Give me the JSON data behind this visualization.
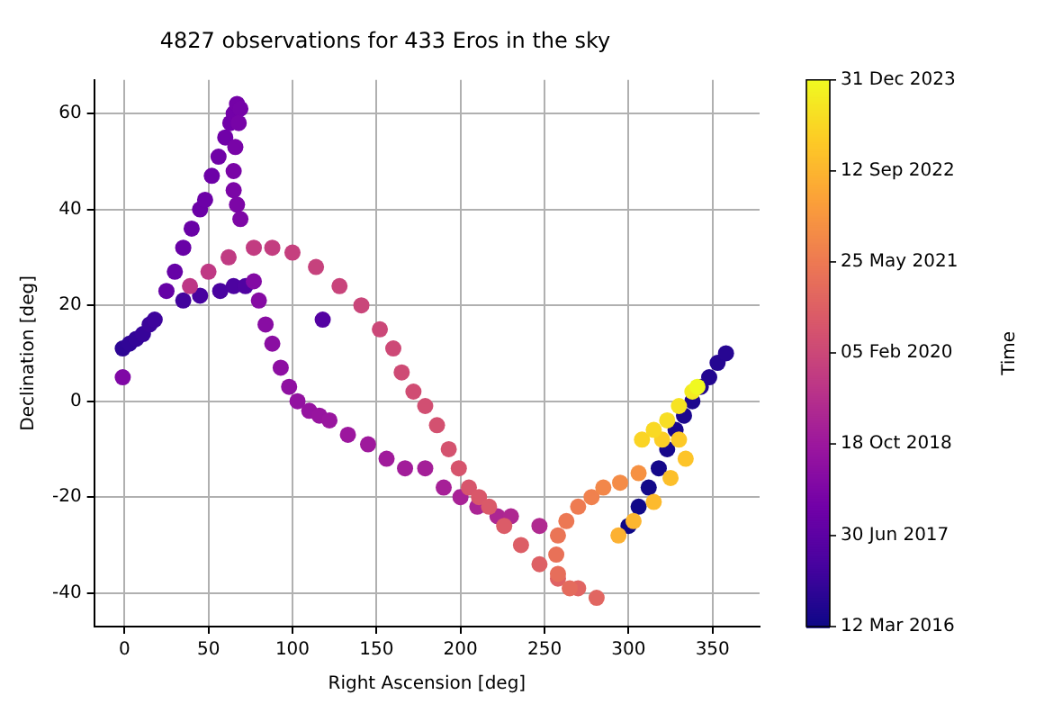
{
  "chart_data": {
    "type": "scatter",
    "title": "4827 observations for 433 Eros in the sky",
    "xlabel": "Right Ascension [deg]",
    "ylabel": "Declination [deg]",
    "clabel": "Time",
    "grid": true,
    "marker": "circle",
    "xlim": [
      -18,
      378
    ],
    "xticks": [
      0,
      50,
      100,
      150,
      200,
      250,
      300,
      350
    ],
    "ylim": [
      -47,
      67
    ],
    "yticks": [
      -40,
      -20,
      0,
      20,
      40,
      60
    ],
    "clim": [
      2016.19,
      2024.0
    ],
    "cticks": [
      {
        "value": 2016.19,
        "label": "12 Mar 2016"
      },
      {
        "value": 2017.49,
        "label": "30 Jun 2017"
      },
      {
        "value": 2018.8,
        "label": "18 Oct 2018"
      },
      {
        "value": 2020.1,
        "label": "05 Feb 2020"
      },
      {
        "value": 2021.4,
        "label": "25 May 2021"
      },
      {
        "value": 2022.7,
        "label": "12 Sep 2022"
      },
      {
        "value": 2024.0,
        "label": "31 Dec 2023"
      }
    ],
    "x": [
      300,
      306,
      312,
      318,
      323,
      328,
      333,
      338,
      343,
      348,
      353,
      358,
      -1,
      3,
      7,
      11,
      15,
      18,
      35,
      45,
      57,
      65,
      72,
      118,
      25,
      30,
      35,
      40,
      45,
      48,
      52,
      56,
      60,
      63,
      65,
      67,
      69,
      68,
      66,
      65,
      65,
      67,
      69,
      -1,
      77,
      80,
      84,
      88,
      93,
      98,
      103,
      110,
      116,
      122,
      133,
      145,
      156,
      167,
      179,
      190,
      200,
      210,
      222,
      230,
      247,
      39,
      50,
      62,
      77,
      88,
      100,
      114,
      128,
      141,
      152,
      160,
      165,
      172,
      179,
      186,
      193,
      199,
      205,
      211,
      217,
      226,
      236,
      247,
      258,
      270,
      281,
      265,
      258,
      257,
      258,
      263,
      270,
      278,
      285,
      295,
      306,
      294,
      303,
      315,
      325,
      334,
      330,
      320,
      308,
      315,
      323,
      330,
      338,
      341
    ],
    "values": [
      -26,
      -22,
      -18,
      -14,
      -10,
      -6,
      -3,
      0,
      3,
      5,
      8,
      10,
      11,
      12,
      13,
      14,
      16,
      17,
      21,
      22,
      23,
      24,
      24,
      17,
      23,
      27,
      32,
      36,
      40,
      42,
      47,
      51,
      55,
      58,
      60,
      62,
      61,
      58,
      53,
      48,
      44,
      41,
      38,
      5,
      25,
      21,
      16,
      12,
      7,
      3,
      0,
      -2,
      -3,
      -4,
      -7,
      -9,
      -12,
      -14,
      -14,
      -18,
      -20,
      -22,
      -24,
      -24,
      -26,
      24,
      27,
      30,
      32,
      32,
      31,
      28,
      24,
      20,
      15,
      11,
      6,
      2,
      -1,
      -5,
      -10,
      -14,
      -18,
      -20,
      -22,
      -26,
      -30,
      -34,
      -37,
      -39,
      -41,
      -39,
      -36,
      -32,
      -28,
      -25,
      -22,
      -20,
      -18,
      -17,
      -15,
      -28,
      -25,
      -21,
      -16,
      -12,
      -8,
      -8,
      -8,
      -6,
      -4,
      -1,
      2,
      3
    ],
    "cvalues": [
      2016.19,
      2016.23,
      2016.27,
      2016.3,
      2016.34,
      2016.37,
      2016.41,
      2016.44,
      2016.48,
      2016.51,
      2016.55,
      2016.59,
      2016.67,
      2016.72,
      2016.77,
      2016.83,
      2016.89,
      2016.94,
      2017.0,
      2017.07,
      2017.14,
      2017.2,
      2017.26,
      2017.33,
      2017.67,
      2017.69,
      2017.72,
      2017.75,
      2017.78,
      2017.8,
      2017.83,
      2017.86,
      2017.89,
      2017.91,
      2017.94,
      2017.97,
      2017.99,
      2018.03,
      2018.05,
      2018.08,
      2018.11,
      2018.13,
      2018.16,
      2018.19,
      2018.27,
      2018.32,
      2018.38,
      2018.43,
      2018.48,
      2018.53,
      2018.59,
      2018.64,
      2018.69,
      2018.74,
      2018.79,
      2018.85,
      2018.9,
      2018.95,
      2019.0,
      2019.05,
      2019.1,
      2019.16,
      2019.21,
      2019.26,
      2019.31,
      2019.67,
      2019.71,
      2019.76,
      2019.81,
      2019.86,
      2019.91,
      2019.96,
      2020.01,
      2020.06,
      2020.11,
      2020.16,
      2020.21,
      2020.26,
      2020.31,
      2020.36,
      2020.41,
      2020.45,
      2020.5,
      2020.55,
      2020.6,
      2020.65,
      2020.7,
      2020.75,
      2020.8,
      2020.85,
      2020.9,
      2021.04,
      2021.12,
      2021.2,
      2021.29,
      2021.37,
      2021.45,
      2021.58,
      2021.71,
      2021.83,
      2021.95,
      2022.62,
      2022.72,
      2022.81,
      2022.91,
      2023.01,
      2023.11,
      2023.21,
      2023.31,
      2023.4,
      2023.5,
      2023.6,
      2023.75,
      2024.0
    ]
  }
}
